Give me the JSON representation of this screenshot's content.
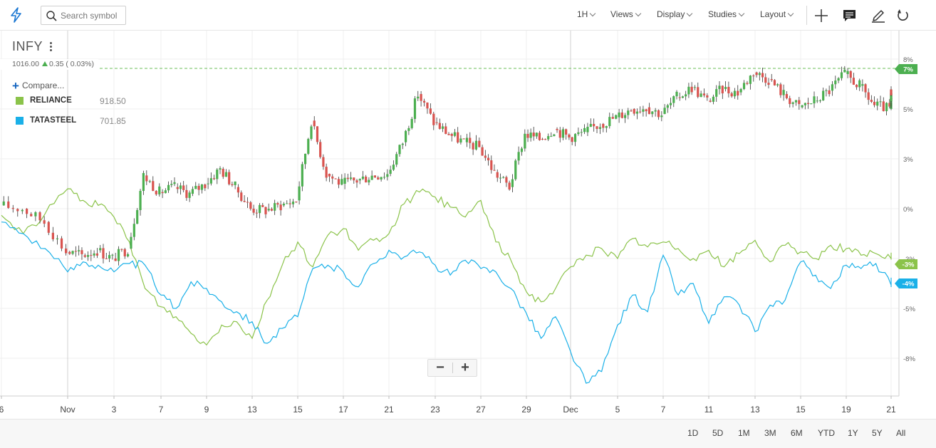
{
  "toolbar": {
    "search_placeholder": "Search symbol",
    "interval": "1H",
    "menus": [
      "Views",
      "Display",
      "Studies",
      "Layout"
    ]
  },
  "symbol": {
    "name": "INFY",
    "price": "1016.00",
    "change": "0.35",
    "change_pct": "( 0.03%)"
  },
  "compare_label": "Compare...",
  "comparisons": [
    {
      "name": "RELIANCE",
      "value": "918.50",
      "color": "#8bc34a"
    },
    {
      "name": "TATASTEEL",
      "value": "701.85",
      "color": "#1ab0e8"
    }
  ],
  "colors": {
    "up_candle": "#4caf50",
    "down_candle": "#d9534f",
    "reliance": "#8bc34a",
    "tatasteel": "#1ab0e8",
    "grid": "#efefef"
  },
  "icons": [
    "lightning-logo-icon",
    "search-icon",
    "crosshair-icon",
    "comment-icon",
    "pencil-icon",
    "refresh-icon"
  ],
  "zoom": {
    "minus": "−",
    "plus": "+"
  },
  "ranges": [
    "1D",
    "5D",
    "1M",
    "3M",
    "6M",
    "YTD",
    "1Y",
    "5Y",
    "All"
  ],
  "chart_data": {
    "type": "line",
    "y_axis": {
      "ticks": [
        "8%",
        "5%",
        "3%",
        "0%",
        "-3%",
        "-5%",
        "-8%"
      ]
    },
    "x_axis": {
      "ticks": [
        "6",
        "Nov",
        "3",
        "7",
        "9",
        "13",
        "15",
        "17",
        "21",
        "23",
        "27",
        "29",
        "Dec",
        "5",
        "7",
        "11",
        "13",
        "15",
        "19",
        "21"
      ]
    },
    "price_tags": [
      {
        "label": "7%",
        "series": "INFY"
      },
      {
        "label": "-3%",
        "series": "RELIANCE"
      },
      {
        "label": "-4%",
        "series": "TATASTEEL"
      }
    ],
    "series": [
      {
        "name": "INFY",
        "style": "candlestick",
        "x": [
          0,
          0.35,
          0.68,
          1.01,
          1.34,
          1.67,
          2.0,
          2.33,
          2.66,
          3.0,
          3.33,
          3.66,
          4.0,
          4.33,
          4.66,
          5.0,
          5.33,
          5.66,
          6.0,
          6.33,
          6.66,
          7.0,
          7.33,
          7.66,
          8.0,
          8.33,
          8.66,
          9.0,
          9.33,
          9.66,
          10.0,
          10.33,
          10.66,
          11.0,
          11.33,
          11.66,
          12.0,
          12.33,
          12.66,
          13.0,
          13.33,
          13.66,
          14.0,
          14.33,
          14.66,
          15.0,
          15.33,
          15.66,
          16.0,
          16.33,
          16.66,
          17.0,
          17.33,
          17.66,
          18.0,
          18.33,
          18.66,
          19.0,
          19.33,
          19.66
        ],
        "values": [
          0.2,
          0.0,
          -0.8,
          -2.6,
          -2.8,
          -2.5,
          -3.0,
          -2.4,
          2.0,
          1.0,
          1.3,
          0.9,
          1.5,
          2.4,
          1.3,
          0.0,
          -0.1,
          0.2,
          0.5,
          5.3,
          2.1,
          1.5,
          1.7,
          2.0,
          2.1,
          4.0,
          6.9,
          5.2,
          4.5,
          4.0,
          3.7,
          2.2,
          1.3,
          4.5,
          4.2,
          4.8,
          4.3,
          4.6,
          5.1,
          5.5,
          6.0,
          6.1,
          5.7,
          6.7,
          7.3,
          6.5,
          7.2,
          7.0,
          8.2,
          7.8,
          6.9,
          6.1,
          6.5,
          7.1,
          8.1,
          7.4,
          6.2,
          6.0,
          6.6,
          7.1
        ]
      },
      {
        "name": "RELIANCE",
        "x": [
          0,
          0.33,
          0.66,
          1.0,
          1.33,
          1.66,
          2.0,
          2.33,
          2.66,
          3.0,
          3.33,
          3.66,
          4.0,
          4.33,
          4.66,
          5.0,
          5.33,
          5.66,
          6.0,
          6.33,
          6.66,
          7.0,
          7.33,
          7.66,
          8.0,
          8.33,
          8.66,
          9.0,
          9.33,
          9.66,
          10.0,
          10.33,
          10.66,
          11.0,
          11.33,
          11.66,
          12.0,
          12.33,
          12.66,
          13.0,
          13.33,
          13.66,
          14.0,
          14.33,
          14.66,
          15.0,
          15.33,
          15.66,
          16.0,
          16.33,
          16.66,
          17.0,
          17.33,
          17.66,
          18.0,
          18.33,
          18.66,
          19.0,
          19.33,
          19.66
        ],
        "values": [
          -0.4,
          -1.5,
          -0.3,
          1.2,
          0.5,
          0.2,
          -0.5,
          -2.0,
          -4.8,
          -5.9,
          -6.5,
          -7.5,
          -8.2,
          -7.0,
          -6.8,
          -7.8,
          -5.5,
          -3.4,
          -2.0,
          -3.5,
          -1.6,
          -1.2,
          -2.5,
          -1.9,
          -1.5,
          0.3,
          1.0,
          0.7,
          0.1,
          -0.5,
          0.5,
          -2.0,
          -3.1,
          -5.0,
          -5.6,
          -4.8,
          -3.5,
          -2.8,
          -2.4,
          -3.0,
          -1.8,
          -2.3,
          -2.0,
          -2.4,
          -3.0,
          -2.5,
          -3.5,
          -2.7,
          -1.9,
          -3.2,
          -2.2,
          -2.6,
          -3.0,
          -2.2,
          -2.4,
          -2.8,
          -2.7,
          -3.0,
          -2.8,
          -3.0
        ]
      },
      {
        "name": "TATASTEEL",
        "x": [
          0,
          0.33,
          0.66,
          1.0,
          1.33,
          1.66,
          2.0,
          2.33,
          2.66,
          3.0,
          3.33,
          3.66,
          4.0,
          4.33,
          4.66,
          5.0,
          5.33,
          5.66,
          6.0,
          6.33,
          6.66,
          7.0,
          7.33,
          7.66,
          8.0,
          8.33,
          8.66,
          9.0,
          9.33,
          9.66,
          10.0,
          10.33,
          10.66,
          11.0,
          11.33,
          11.66,
          12.0,
          12.33,
          12.66,
          13.0,
          13.33,
          13.66,
          14.0,
          14.33,
          14.66,
          15.0,
          15.33,
          15.66,
          16.0,
          16.33,
          16.66,
          17.0,
          17.33,
          17.66,
          18.0,
          18.33,
          18.66,
          19.0,
          19.33,
          19.66
        ],
        "values": [
          -0.8,
          -1.5,
          -2.4,
          -3.8,
          -3.2,
          -3.4,
          -3.8,
          -3.3,
          -3.4,
          -5.2,
          -6.0,
          -4.4,
          -4.8,
          -5.6,
          -6.2,
          -6.8,
          -8.1,
          -7.2,
          -6.5,
          -3.6,
          -3.4,
          -3.8,
          -4.7,
          -3.3,
          -2.5,
          -2.9,
          -2.6,
          -3.4,
          -4.0,
          -3.1,
          -3.6,
          -3.8,
          -4.8,
          -6.3,
          -7.8,
          -6.5,
          -8.6,
          -10.5,
          -9.8,
          -7.0,
          -5.2,
          -6.2,
          -2.8,
          -5.2,
          -4.5,
          -6.9,
          -5.3,
          -5.8,
          -7.4,
          -5.8,
          -5.5,
          -3.2,
          -4.0,
          -4.8,
          -3.4,
          -3.6,
          -3.3,
          -4.6,
          -4.4,
          -4.3
        ]
      }
    ]
  }
}
